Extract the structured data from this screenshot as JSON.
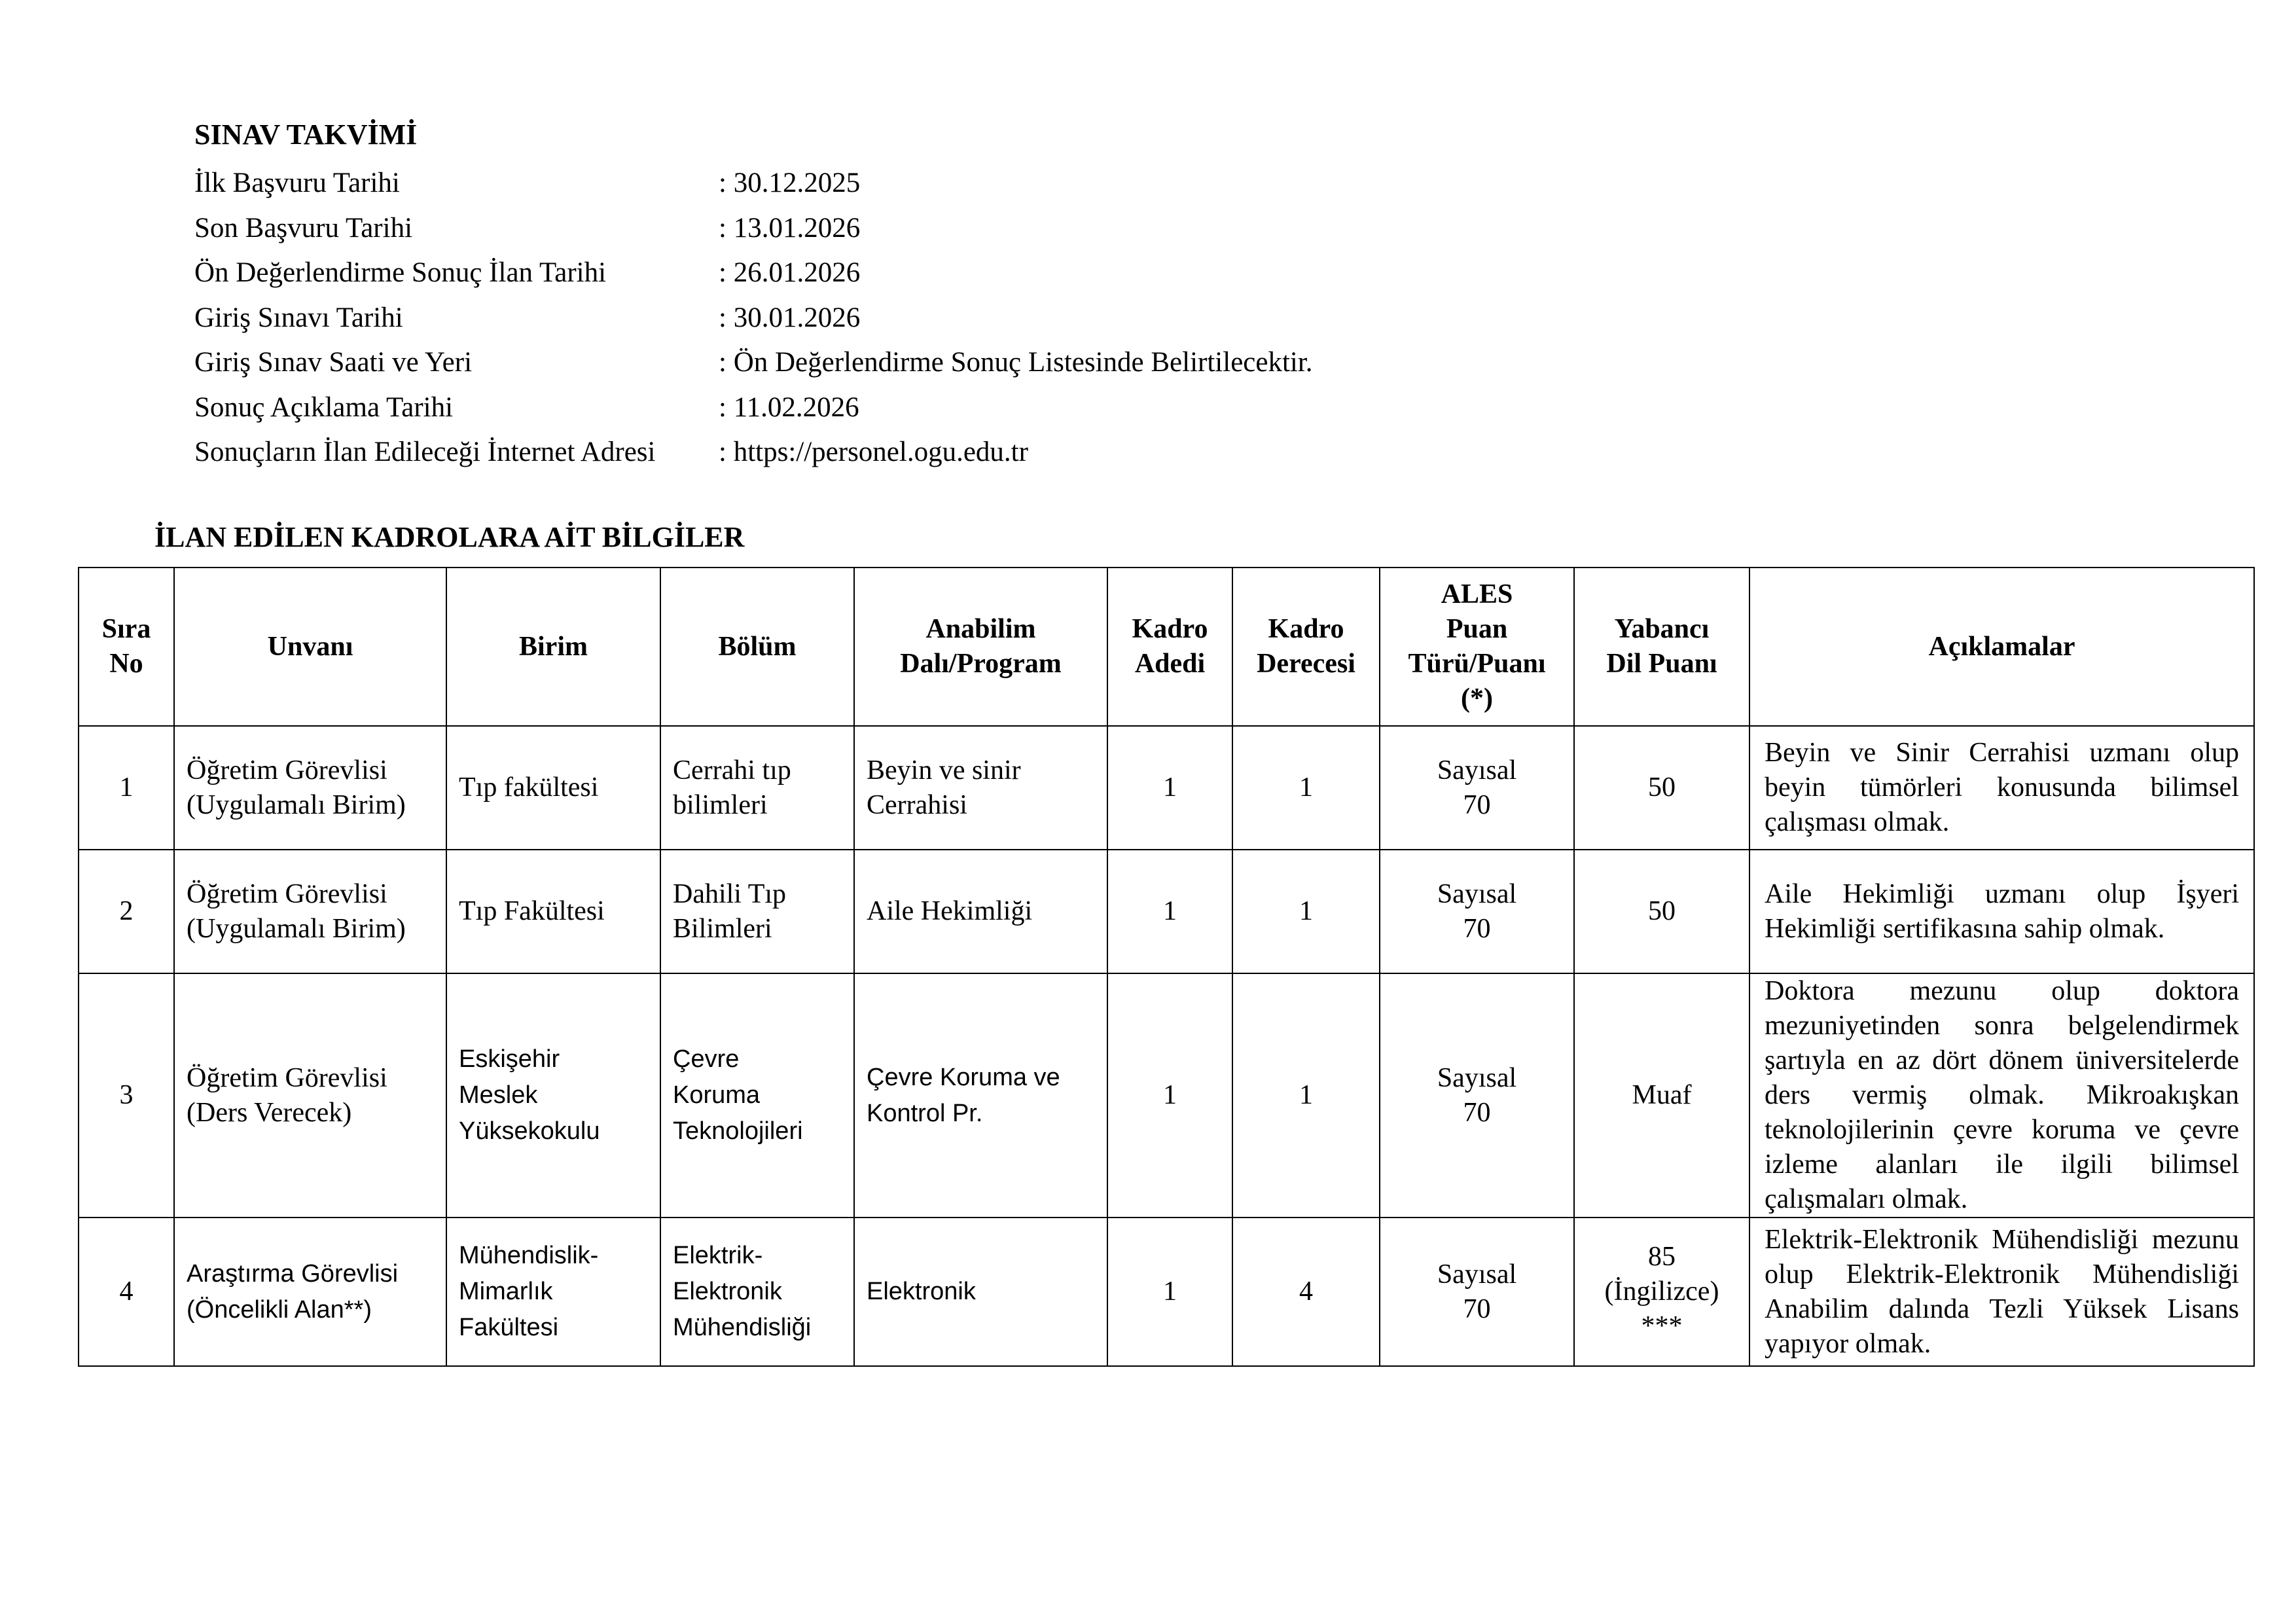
{
  "schedule": {
    "title": "SINAV TAKVİMİ",
    "items": [
      {
        "label": "İlk Başvuru Tarihi",
        "value": ": 30.12.2025"
      },
      {
        "label": "Son Başvuru Tarihi",
        "value": ": 13.01.2026"
      },
      {
        "label": "Ön Değerlendirme Sonuç İlan Tarihi",
        "value": ": 26.01.2026"
      },
      {
        "label": "Giriş Sınavı Tarihi",
        "value": ": 30.01.2026"
      },
      {
        "label": "Giriş Sınav Saati ve Yeri",
        "value": ": Ön Değerlendirme Sonuç Listesinde Belirtilecektir."
      },
      {
        "label": "Sonuç Açıklama Tarihi",
        "value": ": 11.02.2026"
      },
      {
        "label": "Sonuçların İlan Edileceği İnternet Adresi",
        "value": ": https://personel.ogu.edu.tr"
      }
    ]
  },
  "positions": {
    "title": "İLAN EDİLEN KADROLARA AİT BİLGİLER",
    "headers": [
      "Sıra\nNo",
      "Unvanı",
      "Birim",
      "Bölüm",
      "Anabilim\nDalı/Program",
      "Kadro\nAdedi",
      "Kadro\nDerecesi",
      "ALES\nPuan\nTürü/Puanı\n(*)",
      "Yabancı\nDil Puanı",
      "Açıklamalar"
    ],
    "rows": [
      [
        "1",
        "Öğretim Görevlisi\n(Uygulamalı Birim)",
        "Tıp fakültesi",
        "Cerrahi tıp\nbilimleri",
        "Beyin ve sinir\nCerrahisi",
        "1",
        "1",
        "Sayısal\n70",
        "50",
        "Beyin ve Sinir Cerrahisi uzmanı olup beyin tümörleri konusunda bilimsel çalışması olmak."
      ],
      [
        "2",
        "Öğretim Görevlisi\n(Uygulamalı Birim)",
        "Tıp Fakültesi",
        "Dahili Tıp\nBilimleri",
        "Aile Hekimliği",
        "1",
        "1",
        "Sayısal\n70",
        "50",
        "Aile Hekimliği uzmanı olup İşyeri Hekimliği sertifikasına sahip olmak."
      ],
      [
        "3",
        "Öğretim Görevlisi\n(Ders Verecek)",
        "Eskişehir\nMeslek\nYüksekokulu",
        "Çevre\nKoruma\nTeknolojileri",
        "Çevre Koruma ve\nKontrol Pr.",
        "1",
        "1",
        "Sayısal\n70",
        "Muaf",
        "Doktora mezunu olup doktora mezuniyetinden sonra belgelendirmek şartıyla en az dört dönem üniversitelerde ders vermiş olmak. Mikroakışkan teknolojilerinin çevre koruma ve çevre izleme alanları ile ilgili bilimsel çalışmaları olmak."
      ],
      [
        "4",
        "Araştırma Görevlisi\n(Öncelikli Alan**)",
        "Mühendislik-\nMimarlık\nFakültesi",
        "Elektrik-\nElektronik\nMühendisliği",
        "Elektronik",
        "1",
        "4",
        "Sayısal\n70",
        "85\n(İngilizce)\n***",
        "Elektrik-Elektronik Mühendisliği mezunu olup Elektrik-Elektronik Mühendisliği Anabilim dalında Tezli Yüksek Lisans yapıyor olmak."
      ]
    ]
  }
}
